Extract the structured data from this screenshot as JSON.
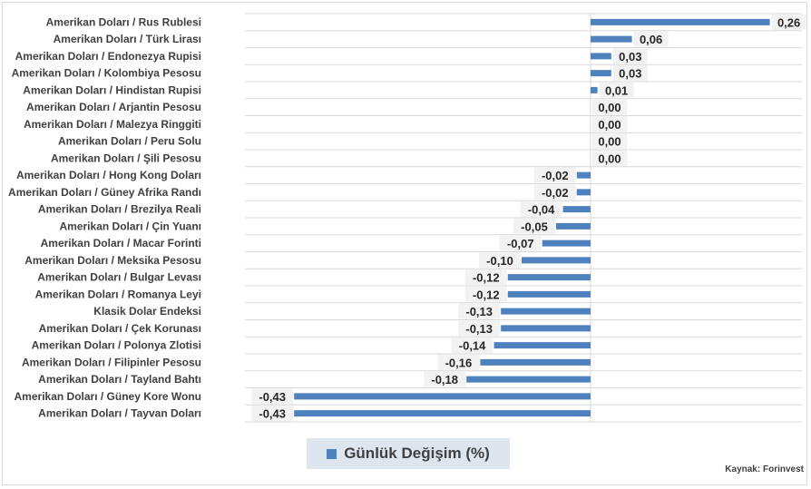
{
  "chart_data": {
    "type": "bar",
    "orientation": "horizontal",
    "categories": [
      "Amerikan Doları / Rus Rublesi",
      "Amerikan Doları / Türk Lirası",
      "Amerikan Doları / Endonezya Rupisi",
      "Amerikan Doları / Kolombiya Pesosu",
      "Amerikan Doları / Hindistan Rupisi",
      "Amerikan Doları / Arjantin Pesosu",
      "Amerikan Doları / Malezya Ringgiti",
      "Amerikan Doları / Peru Solu",
      "Amerikan Doları / Şili Pesosu",
      "Amerikan Doları / Hong Kong Doları",
      "Amerikan Doları / Güney Afrika Randı",
      "Amerikan Doları / Brezilya Reali",
      "Amerikan Doları / Çin Yuanı",
      "Amerikan Doları / Macar Forinti",
      "Amerikan Doları / Meksika Pesosu",
      "Amerikan Doları / Bulgar Levası",
      "Amerikan Doları / Romanya Leyi",
      "Klasik Dolar Endeksi",
      "Amerikan Doları / Çek Korunası",
      "Amerikan Doları / Polonya Zlotisi",
      "Amerikan Doları / Filipinler Pesosu",
      "Amerikan Doları / Tayland Bahtı",
      "Amerikan Doları / Güney Kore Wonu",
      "Amerikan Doları /  Tayvan Doları"
    ],
    "values": [
      0.26,
      0.06,
      0.03,
      0.03,
      0.01,
      0.0,
      0.0,
      0.0,
      0.0,
      -0.02,
      -0.02,
      -0.04,
      -0.05,
      -0.07,
      -0.1,
      -0.12,
      -0.12,
      -0.13,
      -0.13,
      -0.14,
      -0.16,
      -0.18,
      -0.43,
      -0.43
    ],
    "labels": [
      "0,26",
      "0,06",
      "0,03",
      "0,03",
      "0,01",
      "0,00",
      "0,00",
      "0,00",
      "0,00",
      "-0,02",
      "-0,02",
      "-0,04",
      "-0,05",
      "-0,07",
      "-0,10",
      "-0,12",
      "-0,12",
      "-0,13",
      "-0,13",
      "-0,14",
      "-0,16",
      "-0,18",
      "-0,43",
      "-0,43"
    ],
    "series": [
      {
        "name": "Günlük Değişim (%)"
      }
    ],
    "xlim": [
      -0.45,
      0.28
    ],
    "grid": true,
    "legend_position": "bottom",
    "bar_color": "#4e81bd",
    "gridline_color": "#d9d9d9",
    "label_bg_color": "#f2f2f2"
  },
  "legend": {
    "label": "Günlük Değişim (%)"
  },
  "source": "Kaynak: Forinvest"
}
